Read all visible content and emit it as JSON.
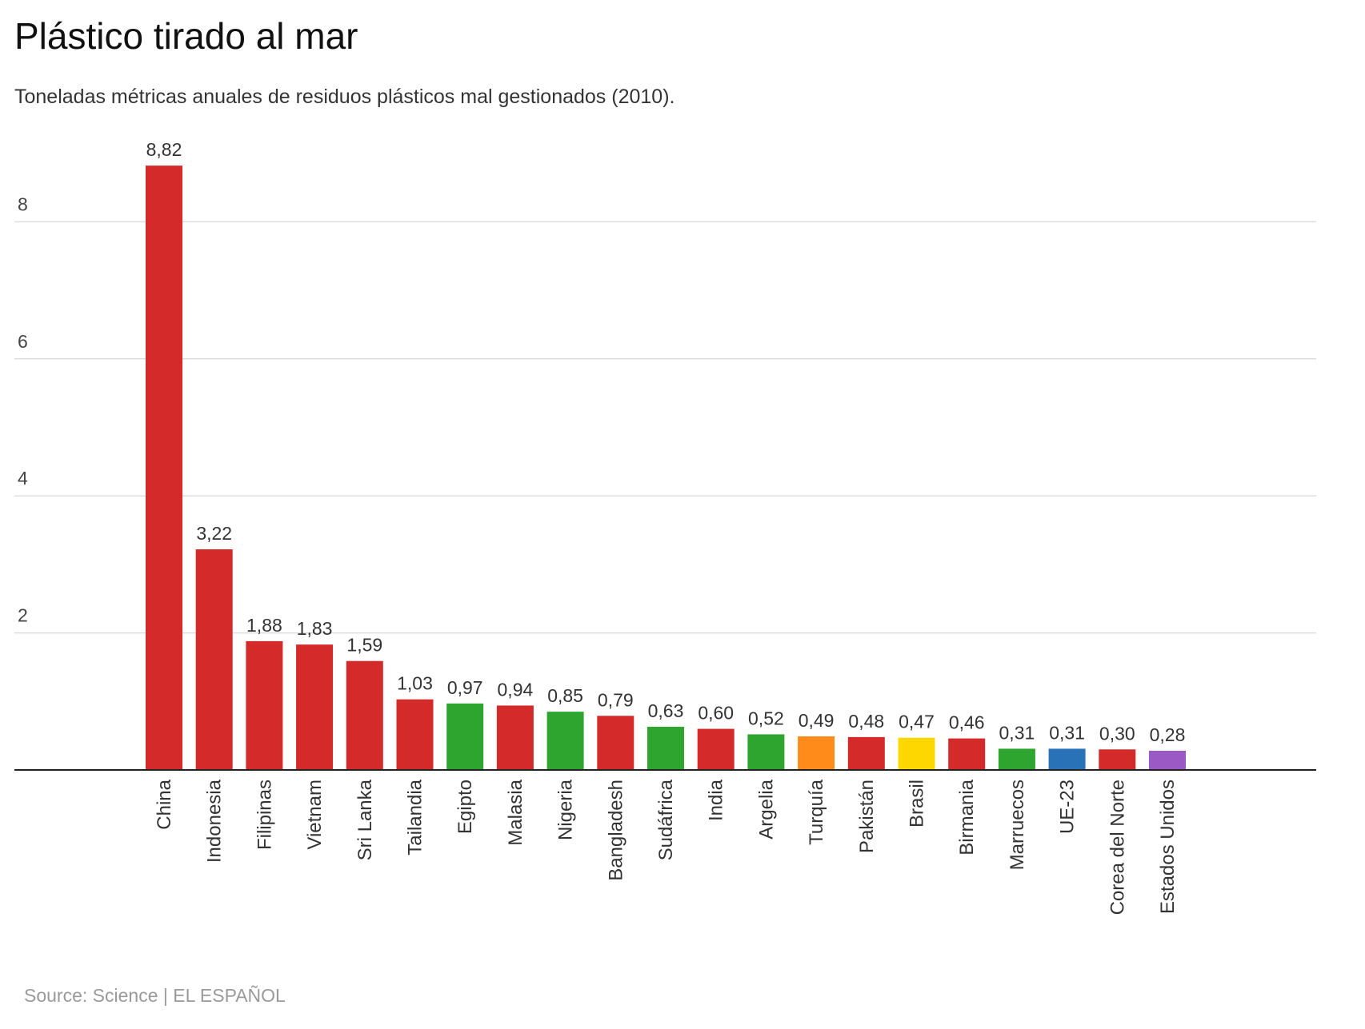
{
  "header": {
    "title": "Plástico tirado al mar",
    "subtitle": "Toneladas métricas anuales de residuos plásticos mal gestionados (2010)."
  },
  "footer": {
    "source": "Source: Science | EL ESPAÑOL"
  },
  "colors": {
    "red": "#d42a2a",
    "green": "#2ea52e",
    "orange": "#ff8c1a",
    "yellow": "#ffd700",
    "blue": "#2a72b8",
    "purple": "#9b59c6",
    "grid": "#dddddd",
    "axis": "#222222"
  },
  "chart_data": {
    "type": "bar",
    "title": "Plástico tirado al mar",
    "subtitle": "Toneladas métricas anuales de residuos plásticos mal gestionados (2010).",
    "xlabel": "",
    "ylabel": "",
    "ylim": [
      0,
      9.5
    ],
    "yticks": [
      "2",
      "4",
      "6",
      "8"
    ],
    "grid": true,
    "legend": "none",
    "categories": [
      "China",
      "Indonesia",
      "Filipinas",
      "Vietnam",
      "Sri Lanka",
      "Tailandia",
      "Egipto",
      "Malasia",
      "Nigeria",
      "Bangladesh",
      "Sudáfrica",
      "India",
      "Argelia",
      "Turquía",
      "Pakistán",
      "Brasil",
      "Birmania",
      "Marruecos",
      "UE-23",
      "Corea del Norte",
      "Estados Unidos"
    ],
    "values": [
      8.82,
      3.22,
      1.88,
      1.83,
      1.59,
      1.03,
      0.97,
      0.94,
      0.85,
      0.79,
      0.63,
      0.6,
      0.52,
      0.49,
      0.48,
      0.47,
      0.46,
      0.31,
      0.31,
      0.3,
      0.28
    ],
    "value_labels": [
      "8,82",
      "3,22",
      "1,88",
      "1,83",
      "1,59",
      "1,03",
      "0,97",
      "0,94",
      "0,85",
      "0,79",
      "0,63",
      "0,60",
      "0,52",
      "0,49",
      "0,48",
      "0,47",
      "0,46",
      "0,31",
      "0,31",
      "0,30",
      "0,28"
    ],
    "bar_colors": [
      "#d42a2a",
      "#d42a2a",
      "#d42a2a",
      "#d42a2a",
      "#d42a2a",
      "#d42a2a",
      "#2ea52e",
      "#d42a2a",
      "#2ea52e",
      "#d42a2a",
      "#2ea52e",
      "#d42a2a",
      "#2ea52e",
      "#ff8c1a",
      "#d42a2a",
      "#ffd700",
      "#d42a2a",
      "#2ea52e",
      "#2a72b8",
      "#d42a2a",
      "#9b59c6"
    ]
  }
}
